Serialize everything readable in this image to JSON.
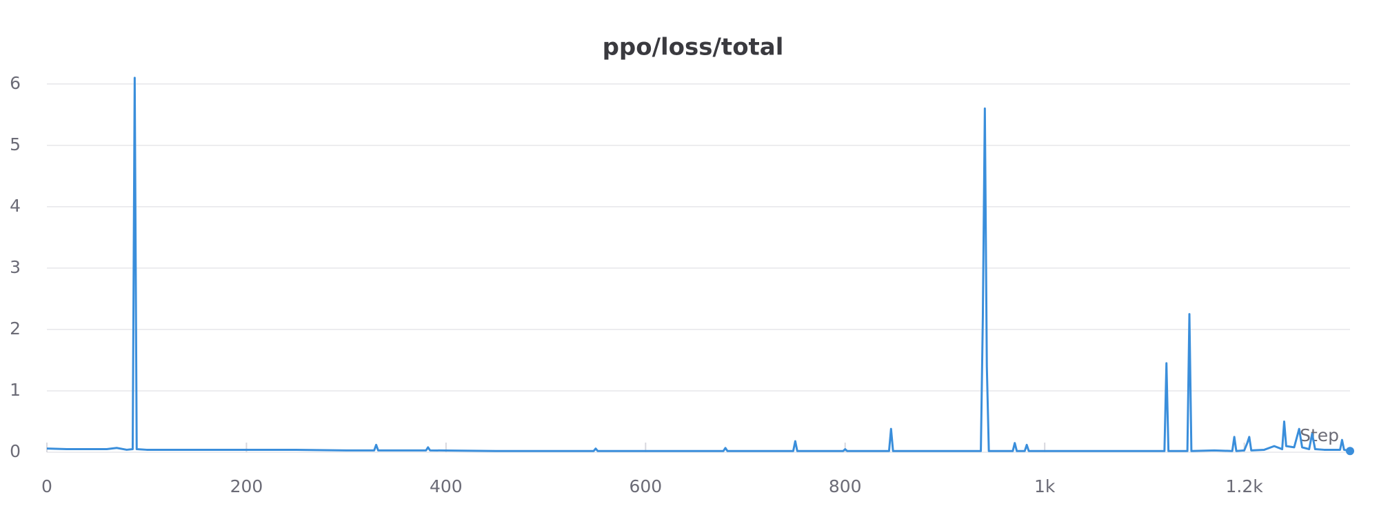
{
  "chart_data": {
    "type": "line",
    "title": "ppo/loss/total",
    "xlabel": "Step",
    "x": [
      0,
      20,
      40,
      60,
      70,
      80,
      86,
      88,
      90,
      100,
      150,
      200,
      250,
      300,
      328,
      330,
      332,
      380,
      382,
      384,
      450,
      500,
      548,
      550,
      552,
      600,
      650,
      678,
      680,
      682,
      700,
      748,
      750,
      752,
      798,
      800,
      802,
      844,
      846,
      848,
      900,
      936,
      938,
      940,
      942,
      944,
      968,
      970,
      972,
      980,
      982,
      984,
      1000,
      1050,
      1100,
      1120,
      1122,
      1124,
      1143,
      1145,
      1147,
      1170,
      1188,
      1190,
      1192,
      1200,
      1203,
      1205,
      1207,
      1220,
      1230,
      1238,
      1240,
      1242,
      1250,
      1255,
      1258,
      1265,
      1268,
      1271,
      1280,
      1296,
      1298,
      1300,
      1306
    ],
    "series": [
      {
        "name": "ppo/loss/total",
        "color": "#3a8edb",
        "values": [
          0.06,
          0.05,
          0.05,
          0.05,
          0.07,
          0.04,
          0.05,
          6.1,
          0.05,
          0.04,
          0.04,
          0.04,
          0.04,
          0.03,
          0.03,
          0.12,
          0.03,
          0.03,
          0.08,
          0.03,
          0.02,
          0.02,
          0.02,
          0.06,
          0.02,
          0.02,
          0.02,
          0.02,
          0.07,
          0.02,
          0.02,
          0.02,
          0.18,
          0.02,
          0.02,
          0.05,
          0.02,
          0.02,
          0.38,
          0.02,
          0.02,
          0.02,
          2.2,
          5.6,
          1.4,
          0.02,
          0.02,
          0.15,
          0.02,
          0.02,
          0.12,
          0.02,
          0.02,
          0.02,
          0.02,
          0.02,
          1.45,
          0.02,
          0.02,
          2.25,
          0.02,
          0.03,
          0.02,
          0.25,
          0.02,
          0.03,
          0.15,
          0.25,
          0.03,
          0.04,
          0.1,
          0.05,
          0.5,
          0.1,
          0.08,
          0.38,
          0.08,
          0.05,
          0.3,
          0.05,
          0.04,
          0.04,
          0.2,
          0.04,
          0.02
        ]
      }
    ],
    "xlim": [
      0,
      1306
    ],
    "xticks": [
      0,
      200,
      400,
      600,
      800,
      {
        "value": 1000,
        "label": "1k"
      },
      {
        "value": 1200,
        "label": "1.2k"
      }
    ],
    "ylim": [
      0,
      6.2
    ],
    "yticks": [
      0,
      1,
      2,
      3,
      4,
      5,
      6
    ],
    "grid": true
  }
}
